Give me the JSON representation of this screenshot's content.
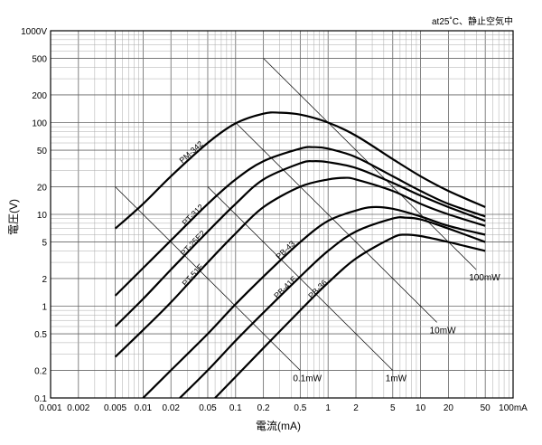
{
  "chart_data": {
    "type": "line",
    "title": "",
    "condition_note": "at25˚C、静止空気中",
    "xlabel": "電流(mA)",
    "ylabel": "電圧(V)",
    "x_scale": "log",
    "y_scale": "log",
    "xlim": [
      0.001,
      100
    ],
    "ylim": [
      0.1,
      1000
    ],
    "grid": true,
    "x_tick_labels": [
      {
        "value": 0.001,
        "label": "0.001"
      },
      {
        "value": 0.002,
        "label": "0.002"
      },
      {
        "value": 0.005,
        "label": "0.005"
      },
      {
        "value": 0.01,
        "label": "0.01"
      },
      {
        "value": 0.02,
        "label": "0.02"
      },
      {
        "value": 0.05,
        "label": "0.05"
      },
      {
        "value": 0.1,
        "label": "0.1"
      },
      {
        "value": 0.2,
        "label": "0.2"
      },
      {
        "value": 0.5,
        "label": "0.5"
      },
      {
        "value": 1,
        "label": "1"
      },
      {
        "value": 2,
        "label": "2"
      },
      {
        "value": 5,
        "label": "5"
      },
      {
        "value": 10,
        "label": "10"
      },
      {
        "value": 20,
        "label": "20"
      },
      {
        "value": 50,
        "label": "50"
      },
      {
        "value": 100,
        "label": "100mA"
      }
    ],
    "y_tick_labels": [
      {
        "value": 1000,
        "label": "1000V"
      },
      {
        "value": 500,
        "label": "500"
      },
      {
        "value": 200,
        "label": "200"
      },
      {
        "value": 100,
        "label": "100"
      },
      {
        "value": 50,
        "label": "50"
      },
      {
        "value": 20,
        "label": "20"
      },
      {
        "value": 10,
        "label": "10"
      },
      {
        "value": 5,
        "label": "5"
      },
      {
        "value": 2,
        "label": "2"
      },
      {
        "value": 1,
        "label": "1"
      },
      {
        "value": 0.5,
        "label": "0.5"
      },
      {
        "value": 0.2,
        "label": "0.2"
      },
      {
        "value": 0.1,
        "label": "0.1"
      }
    ],
    "series": [
      {
        "name": "PM-342",
        "points": [
          [
            0.005,
            7
          ],
          [
            0.01,
            13
          ],
          [
            0.02,
            26
          ],
          [
            0.05,
            60
          ],
          [
            0.1,
            98
          ],
          [
            0.2,
            125
          ],
          [
            0.3,
            128
          ],
          [
            0.5,
            122
          ],
          [
            1,
            100
          ],
          [
            2,
            72
          ],
          [
            5,
            40
          ],
          [
            10,
            26
          ],
          [
            20,
            18
          ],
          [
            50,
            12
          ]
        ]
      },
      {
        "name": "PT-312",
        "points": [
          [
            0.005,
            1.3
          ],
          [
            0.01,
            2.6
          ],
          [
            0.02,
            5.2
          ],
          [
            0.05,
            13
          ],
          [
            0.1,
            24
          ],
          [
            0.2,
            38
          ],
          [
            0.5,
            52
          ],
          [
            0.7,
            54
          ],
          [
            1,
            52
          ],
          [
            2,
            42
          ],
          [
            5,
            26
          ],
          [
            10,
            18
          ],
          [
            20,
            13
          ],
          [
            50,
            9.5
          ]
        ]
      },
      {
        "name": "PT-25E2",
        "points": [
          [
            0.005,
            0.6
          ],
          [
            0.01,
            1.2
          ],
          [
            0.02,
            2.5
          ],
          [
            0.05,
            6.5
          ],
          [
            0.1,
            13
          ],
          [
            0.2,
            24
          ],
          [
            0.5,
            36
          ],
          [
            0.7,
            38
          ],
          [
            1,
            37
          ],
          [
            2,
            32
          ],
          [
            5,
            22
          ],
          [
            10,
            16
          ],
          [
            20,
            12
          ],
          [
            50,
            8.5
          ]
        ]
      },
      {
        "name": "PT-51F",
        "points": [
          [
            0.005,
            0.28
          ],
          [
            0.01,
            0.55
          ],
          [
            0.02,
            1.1
          ],
          [
            0.05,
            3
          ],
          [
            0.1,
            6.2
          ],
          [
            0.2,
            12
          ],
          [
            0.5,
            20
          ],
          [
            1,
            24
          ],
          [
            1.5,
            25
          ],
          [
            2,
            24
          ],
          [
            5,
            18
          ],
          [
            10,
            13
          ],
          [
            20,
            10
          ],
          [
            50,
            7.5
          ]
        ]
      },
      {
        "name": "PB-43",
        "points": [
          [
            0.01,
            0.1
          ],
          [
            0.02,
            0.2
          ],
          [
            0.05,
            0.5
          ],
          [
            0.1,
            1.05
          ],
          [
            0.2,
            2.1
          ],
          [
            0.5,
            5
          ],
          [
            1,
            8.5
          ],
          [
            2,
            11
          ],
          [
            3,
            12
          ],
          [
            5,
            11.5
          ],
          [
            10,
            9.5
          ],
          [
            20,
            7.5
          ],
          [
            50,
            6
          ]
        ]
      },
      {
        "name": "PB-41E",
        "points": [
          [
            0.025,
            0.1
          ],
          [
            0.05,
            0.2
          ],
          [
            0.1,
            0.42
          ],
          [
            0.2,
            0.85
          ],
          [
            0.5,
            2.1
          ],
          [
            1,
            4
          ],
          [
            2,
            6.5
          ],
          [
            5,
            9
          ],
          [
            7,
            9.2
          ],
          [
            10,
            8.8
          ],
          [
            20,
            7
          ],
          [
            50,
            5
          ]
        ]
      },
      {
        "name": "PB-36",
        "points": [
          [
            0.06,
            0.1
          ],
          [
            0.1,
            0.17
          ],
          [
            0.2,
            0.35
          ],
          [
            0.5,
            0.9
          ],
          [
            1,
            1.8
          ],
          [
            2,
            3.3
          ],
          [
            5,
            5.6
          ],
          [
            7,
            6
          ],
          [
            10,
            5.8
          ],
          [
            20,
            5
          ],
          [
            50,
            4
          ]
        ]
      }
    ],
    "power_lines": [
      {
        "label": "0.1mW",
        "power_mW": 0.1,
        "range": [
          0.005,
          0.5
        ]
      },
      {
        "label": "1mW",
        "power_mW": 1,
        "range": [
          0.05,
          5
        ]
      },
      {
        "label": "10mW",
        "power_mW": 10,
        "range": [
          0.1,
          15
        ]
      },
      {
        "label": "100mW",
        "power_mW": 100,
        "range": [
          0.2,
          40
        ]
      }
    ]
  }
}
